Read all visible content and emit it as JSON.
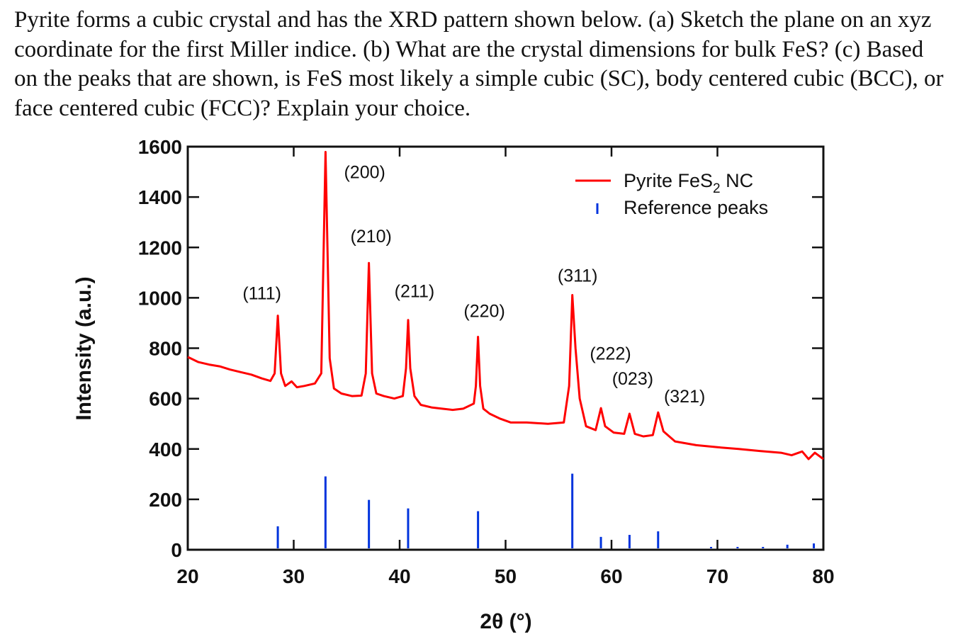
{
  "question": "Pyrite forms a cubic crystal and has the XRD pattern shown below. (a) Sketch the plane on an xyz coordinate for the first Miller indice. (b) What are the crystal dimensions for bulk FeS? (c) Based on the peaks that are shown, is FeS most likely a simple cubic (SC), body centered cubic (BCC), or face centered cubic (FCC)? Explain your choice.",
  "chart_data": {
    "type": "line",
    "xlabel": "2θ (°)",
    "ylabel": "Intensity (a.u.)",
    "xlim": [
      20,
      80
    ],
    "ylim": [
      0,
      1600
    ],
    "xticks": [
      20,
      30,
      40,
      50,
      60,
      70,
      80
    ],
    "yticks": [
      0,
      200,
      400,
      600,
      800,
      1000,
      1200,
      1400,
      1600
    ],
    "grid": false,
    "legend_placement": "top-right",
    "colors": {
      "pattern": "#ff0000",
      "reference": "#0033dd"
    },
    "series": [
      {
        "name": "Pyrite FeS₂ NC",
        "legend_main": "Pyrite FeS",
        "legend_sub": "2",
        "legend_tail": " NC",
        "points": [
          [
            20,
            765
          ],
          [
            21,
            745
          ],
          [
            22,
            735
          ],
          [
            23,
            728
          ],
          [
            24,
            715
          ],
          [
            25,
            705
          ],
          [
            26,
            695
          ],
          [
            27,
            680
          ],
          [
            27.8,
            670
          ],
          [
            28.2,
            700
          ],
          [
            28.5,
            929
          ],
          [
            28.8,
            700
          ],
          [
            29.2,
            650
          ],
          [
            29.8,
            668
          ],
          [
            30.3,
            645
          ],
          [
            31,
            650
          ],
          [
            32,
            660
          ],
          [
            32.6,
            700
          ],
          [
            33.0,
            1579
          ],
          [
            33.4,
            760
          ],
          [
            33.8,
            640
          ],
          [
            34.5,
            620
          ],
          [
            35.5,
            610
          ],
          [
            36.4,
            612
          ],
          [
            36.8,
            700
          ],
          [
            37.1,
            1138
          ],
          [
            37.4,
            700
          ],
          [
            37.8,
            620
          ],
          [
            38.5,
            610
          ],
          [
            39.5,
            600
          ],
          [
            40.3,
            610
          ],
          [
            40.6,
            720
          ],
          [
            40.8,
            912
          ],
          [
            41.0,
            720
          ],
          [
            41.4,
            610
          ],
          [
            42,
            575
          ],
          [
            43,
            565
          ],
          [
            44,
            560
          ],
          [
            45,
            555
          ],
          [
            46,
            560
          ],
          [
            47,
            580
          ],
          [
            47.2,
            650
          ],
          [
            47.4,
            845
          ],
          [
            47.6,
            650
          ],
          [
            47.9,
            560
          ],
          [
            48.5,
            540
          ],
          [
            49.5,
            520
          ],
          [
            50.5,
            505
          ],
          [
            52,
            505
          ],
          [
            54,
            500
          ],
          [
            55.5,
            505
          ],
          [
            56.0,
            650
          ],
          [
            56.3,
            1011
          ],
          [
            56.6,
            800
          ],
          [
            57,
            600
          ],
          [
            57.6,
            490
          ],
          [
            58.5,
            475
          ],
          [
            59.0,
            562
          ],
          [
            59.4,
            490
          ],
          [
            60.2,
            465
          ],
          [
            61.2,
            460
          ],
          [
            61.7,
            540
          ],
          [
            62.2,
            460
          ],
          [
            63,
            450
          ],
          [
            63.9,
            455
          ],
          [
            64.4,
            545
          ],
          [
            64.9,
            470
          ],
          [
            66,
            430
          ],
          [
            68,
            415
          ],
          [
            70,
            407
          ],
          [
            72,
            400
          ],
          [
            74,
            392
          ],
          [
            76,
            385
          ],
          [
            77,
            375
          ],
          [
            78,
            390
          ],
          [
            78.6,
            360
          ],
          [
            79.2,
            385
          ],
          [
            80,
            360
          ]
        ]
      },
      {
        "name": "Reference peaks",
        "type": "stick",
        "sticks": [
          [
            28.5,
            93
          ],
          [
            33.0,
            291
          ],
          [
            37.1,
            198
          ],
          [
            40.8,
            164
          ],
          [
            47.4,
            153
          ],
          [
            56.3,
            302
          ],
          [
            59.0,
            51
          ],
          [
            61.7,
            59
          ],
          [
            64.4,
            73
          ],
          [
            69.4,
            3
          ],
          [
            71.9,
            3
          ],
          [
            74.3,
            3
          ],
          [
            76.6,
            20
          ],
          [
            79.1,
            25
          ]
        ]
      }
    ],
    "annotations": [
      {
        "text": "(111)",
        "x": 27.0,
        "y": 1020
      },
      {
        "text": "(200)",
        "x": 36.7,
        "y": 1500
      },
      {
        "text": "(210)",
        "x": 37.3,
        "y": 1246
      },
      {
        "text": "(211)",
        "x": 41.4,
        "y": 1028
      },
      {
        "text": "(220)",
        "x": 48.0,
        "y": 949
      },
      {
        "text": "(311)",
        "x": 56.8,
        "y": 1090
      },
      {
        "text": "(222)",
        "x": 59.9,
        "y": 780
      },
      {
        "text": "(023)",
        "x": 62.0,
        "y": 681
      },
      {
        "text": "(321)",
        "x": 66.9,
        "y": 610
      }
    ]
  }
}
